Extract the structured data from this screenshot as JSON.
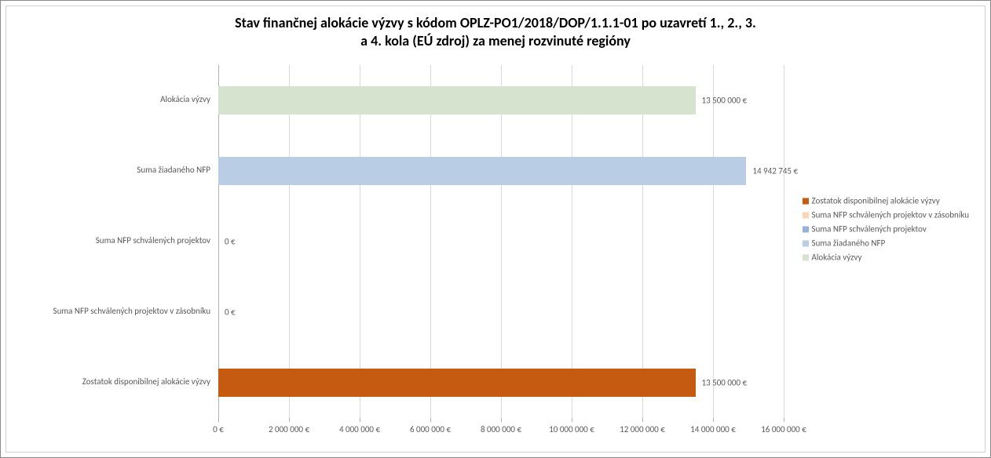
{
  "title_line1": "Stav finančnej alokácie výzvy s kódom OPLZ-PO1/2018/DOP/1.1.1-01 po uzavretí 1., 2., 3.",
  "title_line2": "a 4. kola (EÚ zdroj) za menej rozvinuté regióny",
  "title_fontsize": 18,
  "chart": {
    "type": "bar-horizontal",
    "xmin": 0,
    "xmax": 16000000,
    "xtick_step": 2000000,
    "background_color": "#ffffff",
    "grid_color": "#d9d9d9",
    "axis_color": "#b0b0b0",
    "tick_fontsize": 11,
    "cat_fontsize": 11,
    "datalabel_fontsize": 11,
    "bars": [
      {
        "category": "Alokácia výzvy",
        "value": 13500000,
        "label": "13 500 000 €",
        "color": "#d5e3cf"
      },
      {
        "category": "Suma žiadaného NFP",
        "value": 14942745,
        "label": "14 942 745 €",
        "color": "#b9cde5"
      },
      {
        "category": "Suma NFP schválených projektov",
        "value": 0,
        "label": "0 €",
        "color": "#95b3d7"
      },
      {
        "category": "Suma NFP schválených projektov v zásobníku",
        "value": 0,
        "label": "0 €",
        "color": "#fcd5b5"
      },
      {
        "category": "Zostatok disponibilnej alokácie výzvy",
        "value": 13500000,
        "label": "13 500 000 €",
        "color": "#c55a11"
      }
    ],
    "xticks": [
      {
        "v": 0,
        "label": "0 €"
      },
      {
        "v": 2000000,
        "label": "2 000 000 €"
      },
      {
        "v": 4000000,
        "label": "4 000 000 €"
      },
      {
        "v": 6000000,
        "label": "6 000 000 €"
      },
      {
        "v": 8000000,
        "label": "8 000 000 €"
      },
      {
        "v": 10000000,
        "label": "10 000 000 €"
      },
      {
        "v": 12000000,
        "label": "12 000 000 €"
      },
      {
        "v": 14000000,
        "label": "14 000 000 €"
      },
      {
        "v": 16000000,
        "label": "16 000 000 €"
      }
    ]
  },
  "legend": {
    "fontsize": 11,
    "items": [
      {
        "label": "Zostatok disponibilnej alokácie výzvy",
        "color": "#c55a11"
      },
      {
        "label": "Suma NFP schválených projektov v zásobníku",
        "color": "#fcd5b5"
      },
      {
        "label": "Suma NFP schválených projektov",
        "color": "#95b3d7"
      },
      {
        "label": "Suma žiadaného NFP",
        "color": "#b9cde5"
      },
      {
        "label": "Alokácia výzvy",
        "color": "#d5e3cf"
      }
    ]
  }
}
